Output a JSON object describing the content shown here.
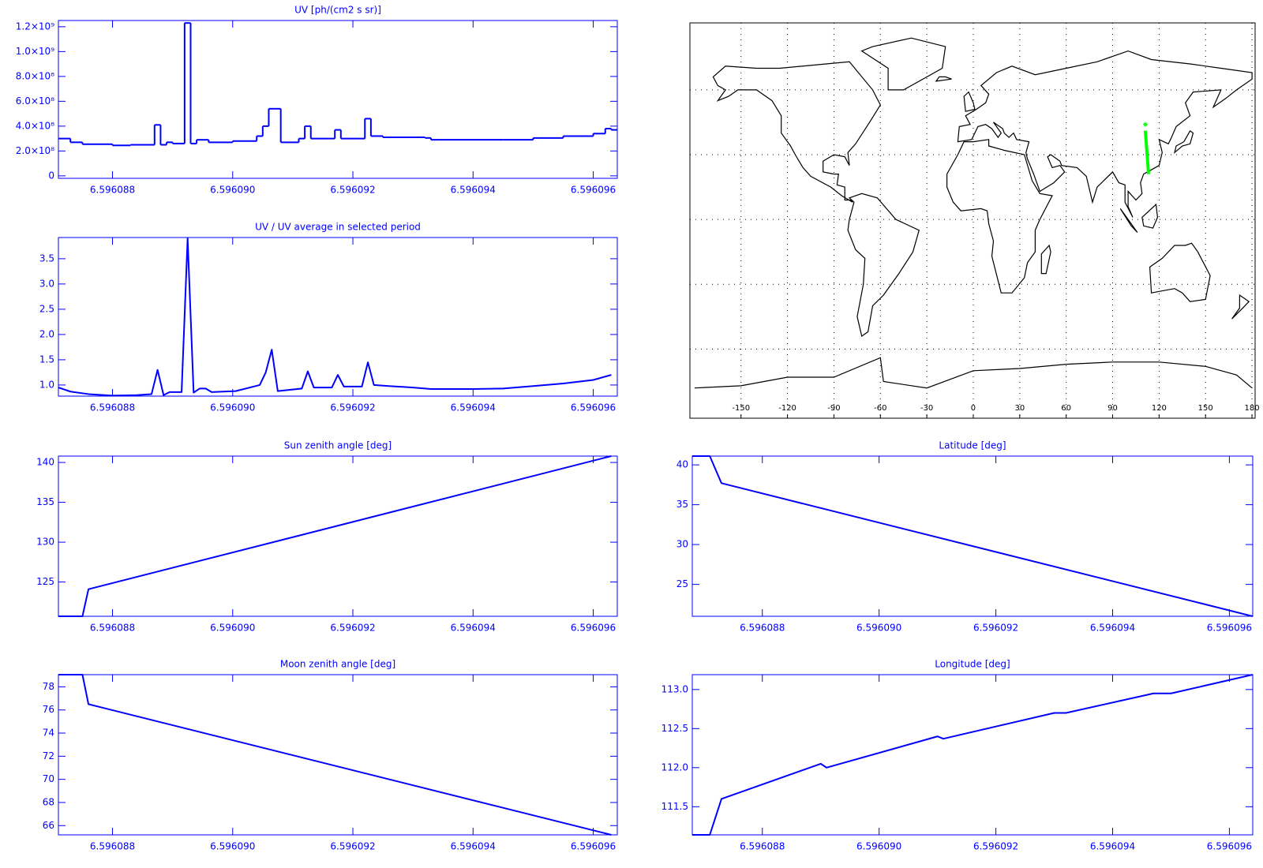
{
  "chart_data": [
    {
      "type": "line",
      "drawstyle": "steps",
      "title": "UV [ph/(cm2 s sr)]",
      "color": "#0000ff",
      "x": [
        6.5960871,
        6.5960873,
        6.5960875,
        6.596088,
        6.5960883,
        6.5960887,
        6.5960888,
        6.5960889,
        6.596089,
        6.5960892,
        6.5960893,
        6.5960894,
        6.5960896,
        6.59609,
        6.5960904,
        6.5960905,
        6.5960906,
        6.5960908,
        6.5960911,
        6.5960912,
        6.5960913,
        6.5960916,
        6.5960917,
        6.5960918,
        6.5960922,
        6.5960923,
        6.5960925,
        6.5960932,
        6.5960933,
        6.5960945,
        6.596095,
        6.5960955,
        6.596096,
        6.5960962,
        6.5960963
      ],
      "values": [
        300000000,
        270000000,
        255000000,
        245000000,
        250000000,
        410000000,
        250000000,
        270000000,
        260000000,
        1230000000,
        260000000,
        290000000,
        270000000,
        280000000,
        320000000,
        400000000,
        540000000,
        270000000,
        300000000,
        400000000,
        300000000,
        300000000,
        370000000,
        300000000,
        460000000,
        320000000,
        310000000,
        305000000,
        290000000,
        290000000,
        305000000,
        320000000,
        340000000,
        380000000,
        370000000
      ],
      "xlim": [
        6.5960871,
        6.5960964
      ],
      "xticks": [
        6.596088,
        {
          "value": 6.59609,
          "label": "6.596090"
        },
        6.596092,
        6.596094,
        6.596096
      ],
      "ylim": [
        -20000000,
        1250000000
      ],
      "yticks": [
        0,
        {
          "value": 200000000,
          "label": "2.0×10⁸"
        },
        {
          "value": 400000000,
          "label": "4.0×10⁸"
        },
        {
          "value": 600000000,
          "label": "6.0×10⁸"
        },
        {
          "value": 800000000,
          "label": "8.0×10⁸"
        },
        {
          "value": 1000000000,
          "label": "1.0×10⁹"
        },
        {
          "value": 1200000000,
          "label": "1.2×10⁹"
        }
      ]
    },
    {
      "type": "line",
      "title": "UV / UV average in selected period",
      "color": "#0000ff",
      "x": [
        6.5960871,
        6.5960873,
        6.5960876,
        6.596088,
        6.5960884,
        6.59608865,
        6.59608875,
        6.59608885,
        6.59608895,
        6.59608915,
        6.59608925,
        6.59608935,
        6.59608945,
        6.59608955,
        6.59608965,
        6.59609005,
        6.59609045,
        6.59609055,
        6.59609065,
        6.59609075,
        6.59609115,
        6.59609125,
        6.59609135,
        6.59609165,
        6.59609175,
        6.59609185,
        6.59609215,
        6.59609225,
        6.59609235,
        6.5960926,
        6.596093,
        6.5960933,
        6.596094,
        6.5960945,
        6.596095,
        6.5960955,
        6.596096,
        6.5960963
      ],
      "values": [
        0.95,
        0.87,
        0.82,
        0.79,
        0.8,
        0.82,
        1.3,
        0.8,
        0.86,
        0.86,
        3.9,
        0.85,
        0.93,
        0.93,
        0.86,
        0.88,
        1.0,
        1.25,
        1.7,
        0.88,
        0.93,
        1.27,
        0.95,
        0.95,
        1.2,
        0.97,
        0.97,
        1.45,
        1.0,
        0.98,
        0.95,
        0.92,
        0.92,
        0.93,
        0.98,
        1.03,
        1.1,
        1.2
      ],
      "xlim": [
        6.5960871,
        6.5960964
      ],
      "xticks": [
        6.596088,
        {
          "value": 6.59609,
          "label": "6.596090"
        },
        6.596092,
        6.596094,
        6.596096
      ],
      "ylim": [
        0.78,
        3.92
      ],
      "yticks": [
        {
          "value": 1,
          "label": "1.0"
        },
        1.5,
        {
          "value": 2,
          "label": "2.0"
        },
        2.5,
        {
          "value": 3,
          "label": "3.0"
        },
        3.5
      ]
    },
    {
      "type": "line",
      "title": "Sun zenith angle [deg]",
      "color": "#0000ff",
      "x": [
        6.5960871,
        6.5960875,
        6.5960876,
        6.5960963
      ],
      "values": [
        120.7,
        120.7,
        124.1,
        140.8
      ],
      "xlim": [
        6.5960871,
        6.5960964
      ],
      "xticks": [
        6.596088,
        {
          "value": 6.59609,
          "label": "6.596090"
        },
        6.596092,
        6.596094,
        6.596096
      ],
      "ylim": [
        120.7,
        140.8
      ],
      "yticks": [
        125,
        130,
        135,
        140
      ]
    },
    {
      "type": "line",
      "title": "Moon zenith angle [deg]",
      "color": "#0000ff",
      "x": [
        6.5960871,
        6.5960875,
        6.5960876,
        6.5960963
      ],
      "values": [
        79.05,
        79.05,
        76.5,
        65.2
      ],
      "xlim": [
        6.5960871,
        6.5960964
      ],
      "xticks": [
        6.596088,
        {
          "value": 6.59609,
          "label": "6.596090"
        },
        6.596092,
        6.596094,
        6.596096
      ],
      "ylim": [
        65.2,
        79.05
      ],
      "yticks": [
        66,
        68,
        70,
        72,
        74,
        76,
        78
      ]
    },
    {
      "type": "line",
      "title": "Latitude [deg]",
      "color": "#0000ff",
      "x": [
        6.5960868,
        6.5960871,
        6.5960873,
        6.5960964
      ],
      "values": [
        41.1,
        41.1,
        37.7,
        21.0
      ],
      "xlim": [
        6.5960868,
        6.5960964
      ],
      "xticks": [
        6.596088,
        {
          "value": 6.59609,
          "label": "6.596090"
        },
        6.596092,
        6.596094,
        6.596096
      ],
      "ylim": [
        21.0,
        41.1
      ],
      "yticks": [
        25,
        30,
        35,
        40
      ]
    },
    {
      "type": "line",
      "title": "Longitude [deg]",
      "color": "#0000ff",
      "x": [
        6.5960868,
        6.5960871,
        6.5960873,
        6.596089,
        6.5960891,
        6.596091,
        6.5960911,
        6.596093,
        6.5960932,
        6.5960947,
        6.596095,
        6.5960964
      ],
      "values": [
        111.14,
        111.14,
        111.6,
        112.05,
        112.0,
        112.4,
        112.37,
        112.7,
        112.7,
        112.95,
        112.95,
        113.19
      ],
      "xlim": [
        6.5960868,
        6.5960964
      ],
      "xticks": [
        6.596088,
        {
          "value": 6.59609,
          "label": "6.596090"
        },
        6.596092,
        6.596094,
        6.596096
      ],
      "ylim": [
        111.14,
        113.19
      ],
      "yticks": [
        111.5,
        {
          "value": 112,
          "label": "112.0"
        },
        112.5,
        {
          "value": 113,
          "label": "113.0"
        }
      ]
    },
    {
      "type": "map",
      "xlim": [
        -183,
        182
      ],
      "ylim": [
        -92,
        91
      ],
      "xticks": [
        -150,
        -120,
        -90,
        -60,
        -30,
        0,
        30,
        60,
        90,
        120,
        150,
        180
      ],
      "ygrid": [
        -60,
        -30,
        0,
        30,
        60
      ],
      "grid": true,
      "track": {
        "color": "#00ff00",
        "lon": [
          111.1,
          113.2
        ],
        "lat": [
          41.1,
          21.0
        ]
      }
    }
  ]
}
